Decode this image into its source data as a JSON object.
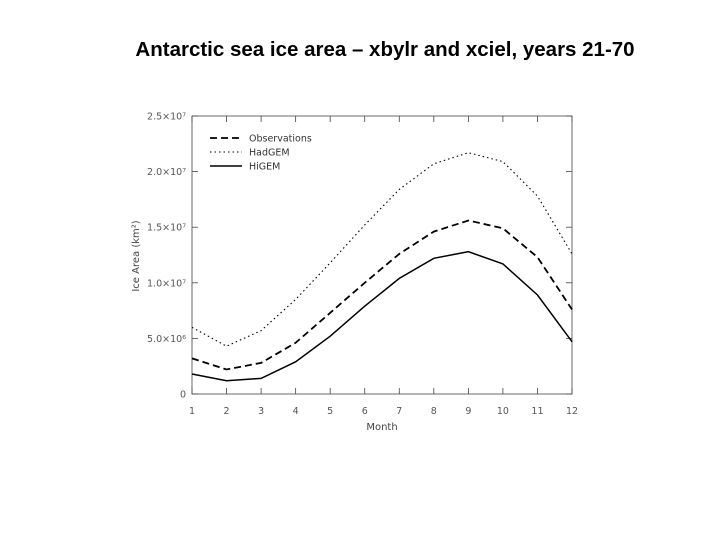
{
  "title": "Antarctic sea ice area – xbylr and xciel, years 21-70",
  "chart_data": {
    "type": "line",
    "title": "Antarctic sea ice area – xbylr and xciel, years 21-70",
    "xlabel": "Month",
    "ylabel": "Ice Area (km²)",
    "x": [
      1,
      2,
      3,
      4,
      5,
      6,
      7,
      8,
      9,
      10,
      11,
      12
    ],
    "xlim": [
      1,
      12
    ],
    "ylim": [
      0,
      25000000
    ],
    "x_ticks": [
      "1",
      "2",
      "3",
      "4",
      "5",
      "6",
      "7",
      "8",
      "9",
      "10",
      "11",
      "12"
    ],
    "y_ticks": [
      {
        "value": 0,
        "label": "0"
      },
      {
        "value": 5000000,
        "label": "5.0×10⁶"
      },
      {
        "value": 10000000,
        "label": "1.0×10⁷"
      },
      {
        "value": 15000000,
        "label": "1.5×10⁷"
      },
      {
        "value": 20000000,
        "label": "2.0×10⁷"
      },
      {
        "value": 25000000,
        "label": "2.5×10⁷"
      }
    ],
    "grid": false,
    "legend_position": "top-left",
    "series": [
      {
        "name": "Observations",
        "style": "dashed",
        "color": "#000000",
        "values": [
          3200000,
          2200000,
          2800000,
          4600000,
          7300000,
          10000000,
          12600000,
          14600000,
          15600000,
          14900000,
          12300000,
          7600000
        ]
      },
      {
        "name": "HadGEM",
        "style": "dotted",
        "color": "#000000",
        "values": [
          6000000,
          4300000,
          5700000,
          8500000,
          11800000,
          15200000,
          18400000,
          20700000,
          21700000,
          20900000,
          17800000,
          12600000
        ]
      },
      {
        "name": "HiGEM",
        "style": "solid",
        "color": "#000000",
        "values": [
          1800000,
          1200000,
          1400000,
          2900000,
          5200000,
          7900000,
          10400000,
          12200000,
          12800000,
          11700000,
          8900000,
          4700000
        ]
      }
    ]
  }
}
